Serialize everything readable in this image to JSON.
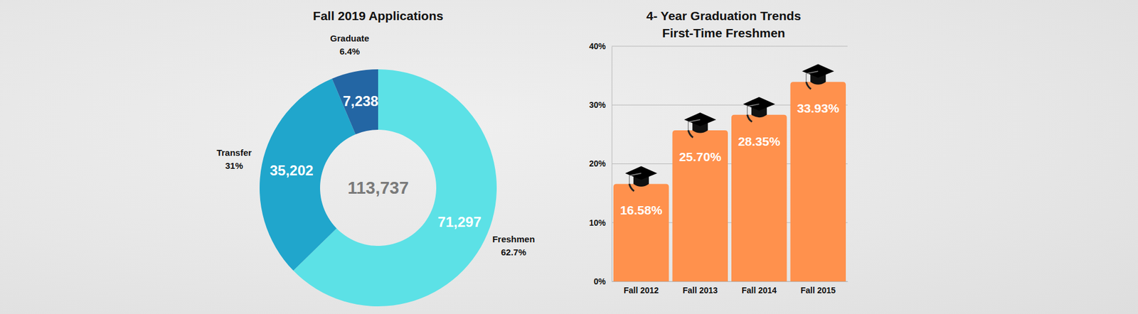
{
  "chart_data": [
    {
      "type": "pie",
      "title": "Fall 2019 Applications",
      "categories": [
        "Freshmen",
        "Transfer",
        "Graduate"
      ],
      "values": [
        71297,
        35202,
        7238
      ],
      "value_labels": [
        "71,297",
        "35,202",
        "7,238"
      ],
      "percents": [
        62.7,
        31,
        6.4
      ],
      "percent_labels": [
        "62.7%",
        "31%",
        "6.4%"
      ],
      "total": 113737,
      "total_label": "113,737",
      "colors": [
        "#5ce1e6",
        "#20a6cc",
        "#2366a4"
      ],
      "data_labels": true
    },
    {
      "type": "bar",
      "title": "4- Year Graduation Trends",
      "subtitle": "First-Time Freshmen",
      "categories": [
        "Fall 2012",
        "Fall 2013",
        "Fall 2014",
        "Fall 2015"
      ],
      "values": [
        16.58,
        25.7,
        28.35,
        33.93
      ],
      "value_labels": [
        "16.58%",
        "25.70%",
        "28.35%",
        "33.93%"
      ],
      "color": "#ff914d",
      "ylim": [
        0,
        40
      ],
      "yticks": [
        {
          "value": 0,
          "label": "0%"
        },
        {
          "value": 10,
          "label": "10%"
        },
        {
          "value": 20,
          "label": "20%"
        },
        {
          "value": 30,
          "label": "30%"
        },
        {
          "value": 40,
          "label": "40%"
        }
      ],
      "grid": true,
      "data_labels": true
    }
  ]
}
